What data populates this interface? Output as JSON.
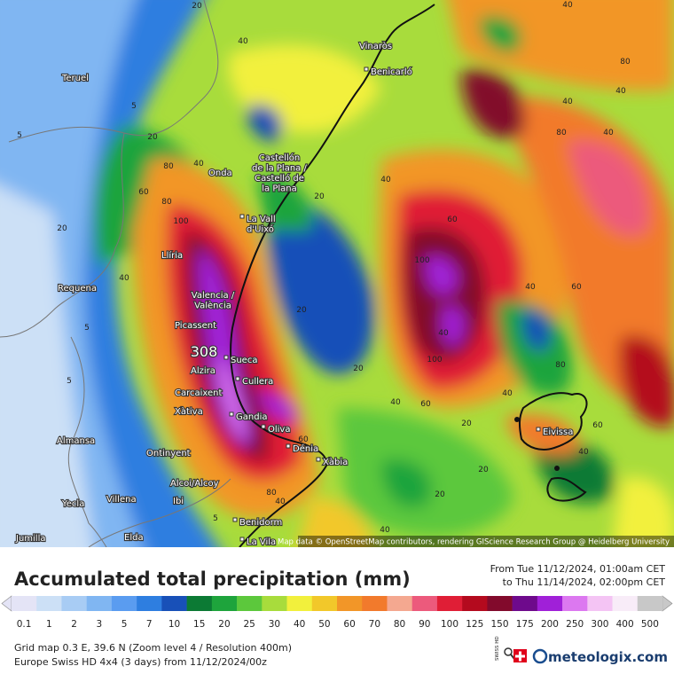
{
  "map": {
    "attribution": "Map data © OpenStreetMap contributors, rendering GIScience Research Group @ Heidelberg University",
    "peak": 308,
    "places": [
      {
        "name": [
          "Teruel"
        ]
      },
      {
        "name": [
          "Vinaròs"
        ]
      },
      {
        "name": [
          "Benicarló"
        ]
      },
      {
        "name": [
          "Castellón",
          "de la Plana /",
          "Castelló de",
          "la Plana"
        ]
      },
      {
        "name": [
          "Onda"
        ]
      },
      {
        "name": [
          "La Vall",
          "d'Uixó"
        ]
      },
      {
        "name": [
          "Llíria"
        ]
      },
      {
        "name": [
          "Requena"
        ]
      },
      {
        "name": [
          "Valencia /",
          "València"
        ]
      },
      {
        "name": [
          "Picassent"
        ]
      },
      {
        "name": [
          "Alzira"
        ]
      },
      {
        "name": [
          "Sueca"
        ]
      },
      {
        "name": [
          "Cullera"
        ]
      },
      {
        "name": [
          "Carcaixent"
        ]
      },
      {
        "name": [
          "Xàtiva"
        ]
      },
      {
        "name": [
          "Gandia"
        ]
      },
      {
        "name": [
          "Oliva"
        ]
      },
      {
        "name": [
          "Almansa"
        ]
      },
      {
        "name": [
          "Ontinyent"
        ]
      },
      {
        "name": [
          "Dénia"
        ]
      },
      {
        "name": [
          "Xàbia"
        ]
      },
      {
        "name": [
          "Alcoi/Alcoy"
        ]
      },
      {
        "name": [
          "Villena"
        ]
      },
      {
        "name": [
          "Yecla"
        ]
      },
      {
        "name": [
          "Ibi"
        ]
      },
      {
        "name": [
          "Benidorm"
        ]
      },
      {
        "name": [
          "Eivissa"
        ]
      },
      {
        "name": [
          "Jumilla"
        ]
      },
      {
        "name": [
          "Elda"
        ]
      },
      {
        "name": [
          "La Vila"
        ]
      }
    ],
    "contours": [
      20,
      40,
      5,
      5,
      20,
      40,
      60,
      80,
      100,
      40,
      20,
      5,
      40,
      20,
      5,
      20,
      40,
      40,
      80,
      40,
      40,
      80,
      60,
      40,
      100,
      100,
      60,
      40,
      60,
      40,
      20,
      20,
      40,
      20,
      60,
      60,
      20,
      80,
      40,
      5,
      40,
      40,
      80,
      80
    ]
  },
  "legend": {
    "title": "Accumulated total precipitation (mm)",
    "period_from": "From Tue 11/12/2024, 01:00am CET",
    "period_to": "to Thu 11/14/2024, 02:00pm CET",
    "scale": [
      {
        "label": 0.1,
        "color": "#e4e4f6"
      },
      {
        "label": 1,
        "color": "#cce0f6"
      },
      {
        "label": 2,
        "color": "#a8ccf4"
      },
      {
        "label": 3,
        "color": "#80b6f2"
      },
      {
        "label": 5,
        "color": "#5a9cf0"
      },
      {
        "label": 7,
        "color": "#2e7ee0"
      },
      {
        "label": 10,
        "color": "#1850b8"
      },
      {
        "label": 15,
        "color": "#0c7a34"
      },
      {
        "label": 20,
        "color": "#1ea43c"
      },
      {
        "label": 25,
        "color": "#5cc83c"
      },
      {
        "label": 30,
        "color": "#a8dc3c"
      },
      {
        "label": 40,
        "color": "#f2f03c"
      },
      {
        "label": 50,
        "color": "#f2c82a"
      },
      {
        "label": 60,
        "color": "#f29628"
      },
      {
        "label": 70,
        "color": "#f27a2c"
      },
      {
        "label": 80,
        "color": "#f4a890"
      },
      {
        "label": 90,
        "color": "#ec5a7c"
      },
      {
        "label": 100,
        "color": "#e01e36"
      },
      {
        "label": 125,
        "color": "#b40a1e"
      },
      {
        "label": 150,
        "color": "#820a2c"
      },
      {
        "label": 175,
        "color": "#6e0a8c"
      },
      {
        "label": 200,
        "color": "#a020d8"
      },
      {
        "label": 250,
        "color": "#dc78f0"
      },
      {
        "label": 300,
        "color": "#f4c4f4"
      },
      {
        "label": 400,
        "color": "#f8ecf8"
      },
      {
        "label": 500,
        "color": "#c8c8c8"
      }
    ]
  },
  "footer": {
    "line1": "Grid map 0.3 E, 39.6 N (Zoom level 4 / Resolution 400m)",
    "line2": "Europe Swiss HD 4x4 (3 days) from 11/12/2024/00z",
    "badge": "SWISS HD",
    "brand": "meteologix.com"
  }
}
